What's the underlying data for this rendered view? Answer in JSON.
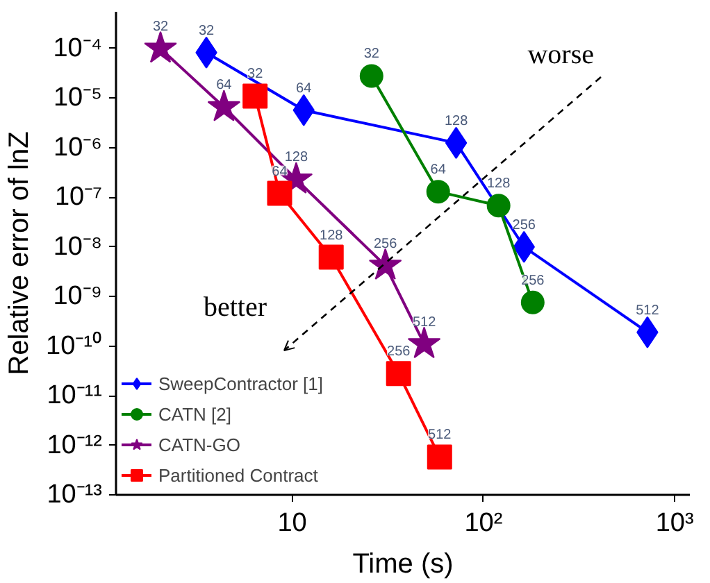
{
  "chart_data": {
    "type": "line",
    "xlabel": "Time (s)",
    "ylabel": "Relative error of lnZ",
    "log": "xy",
    "grid": false,
    "legend": "bottom left",
    "xlim": [
      1.2,
      1200
    ],
    "ylim": [
      1e-13,
      0.00055
    ],
    "xticks": [
      10,
      {
        "value": 100,
        "label": "10²"
      },
      {
        "value": 1000,
        "label": "10³"
      }
    ],
    "yticks": [
      {
        "value": 1e-13,
        "label": "10⁻¹³"
      },
      {
        "value": 1e-12,
        "label": "10⁻¹²"
      },
      {
        "value": 1e-11,
        "label": "10⁻¹¹"
      },
      {
        "value": 1e-10,
        "label": "10⁻¹⁰"
      },
      {
        "value": 1e-09,
        "label": "10⁻⁹"
      },
      {
        "value": 1e-08,
        "label": "10⁻⁸"
      },
      {
        "value": 1e-07,
        "label": "10⁻⁷"
      },
      {
        "value": 1e-06,
        "label": "10⁻⁶"
      },
      {
        "value": 1e-05,
        "label": "10⁻⁵"
      },
      {
        "value": 0.0001,
        "label": "10⁻⁴"
      }
    ],
    "series": [
      {
        "name": "SweepContractor [1]",
        "color": "#0000ff",
        "marker": "diamond",
        "x": [
          3.56,
          11.5,
          72,
          163,
          720
        ],
        "values": [
          8.3e-05,
          5.7e-06,
          1.25e-06,
          1e-08,
          1.9e-10
        ]
      },
      {
        "name": "CATN [2]",
        "color": "#008000",
        "marker": "circle",
        "x": [
          26,
          58,
          120,
          181
        ],
        "values": [
          2.8e-05,
          1.3e-07,
          6.8e-08,
          7.6e-10
        ]
      },
      {
        "name": "CATN-GO",
        "color": "#800080",
        "marker": "star",
        "x": [
          2.05,
          4.4,
          10.5,
          30.7,
          49
        ],
        "values": [
          0.0001,
          6.6e-06,
          2.3e-07,
          4.2e-09,
          1.1e-10
        ]
      },
      {
        "name": "Partitioned Contract",
        "color": "#ff0000",
        "marker": "square",
        "x": [
          6.4,
          8.6,
          16,
          36,
          59
        ],
        "values": [
          1.1e-05,
          1.2e-07,
          6.2e-09,
          2.8e-11,
          5.8e-13
        ]
      }
    ],
    "annotations": [
      {
        "text": "32",
        "x": 3.56,
        "y": 8.3e-05
      },
      {
        "text": "64",
        "x": 11.5,
        "y": 5.7e-06
      },
      {
        "text": "128",
        "x": 72,
        "y": 1.25e-06
      },
      {
        "text": "256",
        "x": 163,
        "y": 1e-08
      },
      {
        "text": "512",
        "x": 720,
        "y": 1.9e-10
      },
      {
        "text": "32",
        "x": 26,
        "y": 2.8e-05
      },
      {
        "text": "64",
        "x": 58,
        "y": 1.3e-07
      },
      {
        "text": "128",
        "x": 120,
        "y": 6.8e-08
      },
      {
        "text": "256",
        "x": 181,
        "y": 7.6e-10
      },
      {
        "text": "32",
        "x": 2.05,
        "y": 0.0001
      },
      {
        "text": "64",
        "x": 4.4,
        "y": 6.6e-06
      },
      {
        "text": "128",
        "x": 10.5,
        "y": 2.3e-07
      },
      {
        "text": "256",
        "x": 30.7,
        "y": 4.2e-09
      },
      {
        "text": "512",
        "x": 49,
        "y": 1.1e-10
      },
      {
        "text": "32",
        "x": 6.4,
        "y": 1.1e-05
      },
      {
        "text": "64",
        "x": 8.6,
        "y": 1.2e-07
      },
      {
        "text": "128",
        "x": 16,
        "y": 6.2e-09
      },
      {
        "text": "256",
        "x": 36,
        "y": 2.8e-11
      },
      {
        "text": "512",
        "x": 59,
        "y": 5.8e-13
      },
      "better",
      "worse"
    ]
  }
}
